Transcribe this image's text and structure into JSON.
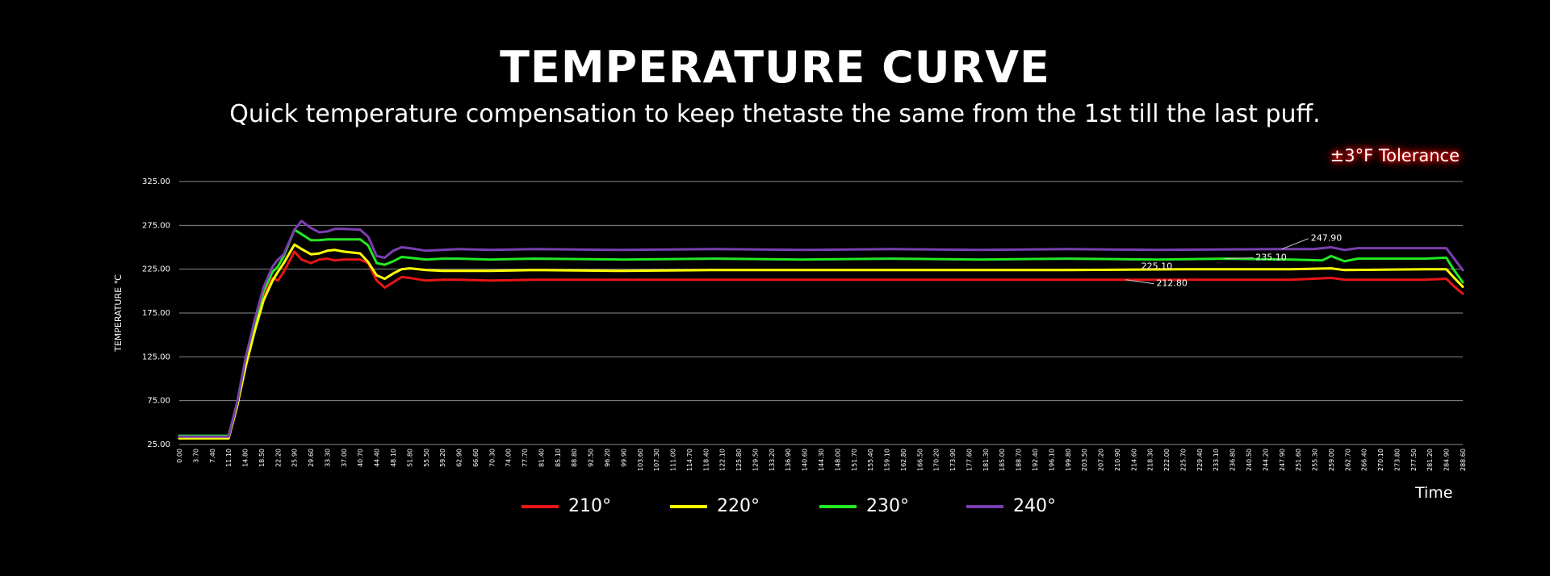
{
  "header": {
    "title": "TEMPERATURE CURVE",
    "subtitle": "Quick temperature compensation to keep thetaste the same from the 1st till the last puff.",
    "tolerance": "±3°F Tolerance"
  },
  "chart_data": {
    "type": "line",
    "ylabel": "TEMPERATURE ℃",
    "xlabel": "Time",
    "ylim": [
      25,
      325
    ],
    "yticks": [
      "325.00",
      "275.00",
      "225.00",
      "175.00",
      "125.00",
      "75.00",
      "25.00"
    ],
    "xticks": [
      "0.00",
      "3.70",
      "7.40",
      "11.10",
      "14.80",
      "18.50",
      "22.20",
      "25.90",
      "29.60",
      "33.30",
      "37.00",
      "40.70",
      "44.40",
      "48.10",
      "51.80",
      "55.50",
      "59.20",
      "62.90",
      "66.60",
      "70.30",
      "74.00",
      "77.70",
      "81.40",
      "85.10",
      "88.80",
      "92.50",
      "96.20",
      "99.90",
      "103.60",
      "107.30",
      "111.00",
      "114.70",
      "118.40",
      "122.10",
      "125.80",
      "129.50",
      "133.20",
      "136.90",
      "140.60",
      "144.30",
      "148.00",
      "151.70",
      "155.40",
      "159.10",
      "162.80",
      "166.50",
      "170.20",
      "173.90",
      "177.60",
      "181.30",
      "185.00",
      "188.70",
      "192.40",
      "196.10",
      "199.80",
      "203.50",
      "207.20",
      "210.90",
      "214.60",
      "218.30",
      "222.00",
      "225.70",
      "229.40",
      "233.10",
      "236.80",
      "240.50",
      "244.20",
      "247.90",
      "251.60",
      "255.30",
      "259.00",
      "262.70",
      "266.40",
      "270.10",
      "273.80",
      "277.50",
      "281.20",
      "284.90",
      "288.60"
    ],
    "xlim": [
      0,
      288.6
    ],
    "grid": true,
    "legend_position": "bottom",
    "series": [
      {
        "name": "210°",
        "color": "#e81515",
        "points": [
          [
            0,
            33
          ],
          [
            11.1,
            33
          ],
          [
            13,
            70
          ],
          [
            15,
            120
          ],
          [
            17,
            160
          ],
          [
            19,
            195
          ],
          [
            21,
            215
          ],
          [
            22.2,
            212
          ],
          [
            23.5,
            222
          ],
          [
            25.9,
            245
          ],
          [
            27.5,
            236
          ],
          [
            29.6,
            232
          ],
          [
            31.5,
            236
          ],
          [
            33.3,
            237
          ],
          [
            35,
            235
          ],
          [
            37,
            236
          ],
          [
            40.7,
            236
          ],
          [
            42.5,
            232
          ],
          [
            44.4,
            212
          ],
          [
            46.2,
            204
          ],
          [
            48.1,
            210
          ],
          [
            50,
            216
          ],
          [
            51.8,
            215
          ],
          [
            55.5,
            212
          ],
          [
            59.2,
            213
          ],
          [
            62.9,
            213
          ],
          [
            70,
            212
          ],
          [
            80,
            213
          ],
          [
            100,
            213
          ],
          [
            120,
            213
          ],
          [
            140,
            213
          ],
          [
            160,
            213
          ],
          [
            180,
            213
          ],
          [
            200,
            213
          ],
          [
            212.8,
            213
          ],
          [
            225,
            213
          ],
          [
            240,
            213
          ],
          [
            250,
            213
          ],
          [
            259,
            215
          ],
          [
            262,
            213
          ],
          [
            280,
            213
          ],
          [
            284.9,
            214
          ],
          [
            286.5,
            206
          ],
          [
            288.6,
            197
          ]
        ]
      },
      {
        "name": "220°",
        "color": "#ffff00",
        "points": [
          [
            0,
            32
          ],
          [
            11.1,
            32
          ],
          [
            13,
            68
          ],
          [
            15,
            115
          ],
          [
            17,
            155
          ],
          [
            19,
            190
          ],
          [
            21,
            212
          ],
          [
            22.2,
            222
          ],
          [
            23.5,
            232
          ],
          [
            25.9,
            253
          ],
          [
            27.5,
            248
          ],
          [
            29.6,
            242
          ],
          [
            31.5,
            243
          ],
          [
            33.3,
            246
          ],
          [
            35,
            247
          ],
          [
            37,
            245
          ],
          [
            40.7,
            243
          ],
          [
            42.5,
            233
          ],
          [
            44.4,
            218
          ],
          [
            46.2,
            214
          ],
          [
            48.1,
            220
          ],
          [
            50,
            225
          ],
          [
            51.8,
            226
          ],
          [
            55.5,
            224
          ],
          [
            59.2,
            223
          ],
          [
            62.9,
            223
          ],
          [
            70,
            223
          ],
          [
            80,
            224
          ],
          [
            100,
            223
          ],
          [
            120,
            224
          ],
          [
            140,
            224
          ],
          [
            160,
            224
          ],
          [
            180,
            224
          ],
          [
            200,
            224
          ],
          [
            225.1,
            225
          ],
          [
            240,
            225
          ],
          [
            250,
            225
          ],
          [
            259,
            226
          ],
          [
            262,
            224
          ],
          [
            280,
            225
          ],
          [
            284.9,
            225
          ],
          [
            286.5,
            216
          ],
          [
            288.6,
            205
          ]
        ]
      },
      {
        "name": "230°",
        "color": "#22e822",
        "points": [
          [
            0,
            35
          ],
          [
            11.1,
            35
          ],
          [
            13,
            72
          ],
          [
            15,
            125
          ],
          [
            17,
            165
          ],
          [
            19,
            200
          ],
          [
            21,
            222
          ],
          [
            22.2,
            228
          ],
          [
            23.5,
            240
          ],
          [
            25.9,
            270
          ],
          [
            27.5,
            265
          ],
          [
            29.6,
            258
          ],
          [
            31.5,
            258
          ],
          [
            33.3,
            259
          ],
          [
            37,
            259
          ],
          [
            40.7,
            259
          ],
          [
            42.5,
            252
          ],
          [
            44.4,
            232
          ],
          [
            46.2,
            230
          ],
          [
            48.1,
            234
          ],
          [
            50,
            239
          ],
          [
            51.8,
            238
          ],
          [
            55.5,
            236
          ],
          [
            59.2,
            237
          ],
          [
            62.9,
            237
          ],
          [
            70,
            236
          ],
          [
            80,
            237
          ],
          [
            100,
            236
          ],
          [
            120,
            237
          ],
          [
            140,
            236
          ],
          [
            160,
            237
          ],
          [
            180,
            236
          ],
          [
            200,
            237
          ],
          [
            220,
            236
          ],
          [
            235.1,
            237
          ],
          [
            250,
            236
          ],
          [
            257,
            235
          ],
          [
            259,
            240
          ],
          [
            262,
            234
          ],
          [
            265,
            237
          ],
          [
            280,
            237
          ],
          [
            284.9,
            238
          ],
          [
            286.5,
            225
          ],
          [
            288.6,
            210
          ]
        ]
      },
      {
        "name": "240°",
        "color": "#7a3fb0",
        "points": [
          [
            0,
            34
          ],
          [
            11.1,
            34
          ],
          [
            13,
            72
          ],
          [
            15,
            125
          ],
          [
            17,
            168
          ],
          [
            19,
            205
          ],
          [
            21,
            228
          ],
          [
            22.2,
            236
          ],
          [
            23.5,
            242
          ],
          [
            25.9,
            270
          ],
          [
            27.5,
            280
          ],
          [
            29.6,
            272
          ],
          [
            31.5,
            267
          ],
          [
            33.3,
            268
          ],
          [
            35,
            271
          ],
          [
            37,
            271
          ],
          [
            40.7,
            270
          ],
          [
            42.5,
            262
          ],
          [
            44.4,
            240
          ],
          [
            46.2,
            238
          ],
          [
            48.1,
            246
          ],
          [
            50,
            250
          ],
          [
            51.8,
            249
          ],
          [
            55.5,
            246
          ],
          [
            59.2,
            247
          ],
          [
            62.9,
            248
          ],
          [
            70,
            247
          ],
          [
            80,
            248
          ],
          [
            100,
            247
          ],
          [
            120,
            248
          ],
          [
            140,
            247
          ],
          [
            160,
            248
          ],
          [
            180,
            247
          ],
          [
            200,
            248
          ],
          [
            220,
            247
          ],
          [
            247.9,
            248
          ],
          [
            255,
            248
          ],
          [
            259,
            250
          ],
          [
            262,
            247
          ],
          [
            265,
            249
          ],
          [
            280,
            249
          ],
          [
            284.9,
            249
          ],
          [
            286.5,
            238
          ],
          [
            288.6,
            224
          ]
        ]
      }
    ],
    "annotations": [
      {
        "text": "247.90",
        "x": 247.9,
        "y": 248,
        "series": "240°"
      },
      {
        "text": "235.10",
        "x": 235.1,
        "y": 237,
        "series": "230°"
      },
      {
        "text": "225.10",
        "x": 225.1,
        "y": 225,
        "series": "220°"
      },
      {
        "text": "212.80",
        "x": 212.8,
        "y": 213,
        "series": "210°"
      }
    ]
  }
}
